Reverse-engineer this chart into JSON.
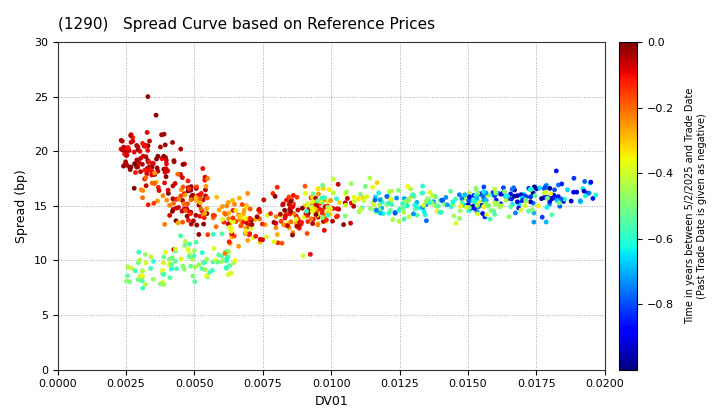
{
  "title": "(1290)   Spread Curve based on Reference Prices",
  "xlabel": "DV01",
  "ylabel": "Spread (bp)",
  "xlim": [
    0.0,
    0.02
  ],
  "ylim": [
    0,
    30
  ],
  "xticks": [
    0.0,
    0.0025,
    0.005,
    0.0075,
    0.01,
    0.0125,
    0.015,
    0.0175,
    0.02
  ],
  "yticks": [
    0,
    5,
    10,
    15,
    20,
    25,
    30
  ],
  "colorbar_label": "Time in years between 5/2/2025 and Trade Date\n(Past Trade Date is given as negative)",
  "colorbar_ticks": [
    0.0,
    -0.2,
    -0.4,
    -0.6,
    -0.8
  ],
  "cmap": "jet",
  "vmin": -1.0,
  "vmax": 0.0,
  "marker_size": 12,
  "background_color": "#ffffff",
  "grid_color": "#aaaaaa"
}
